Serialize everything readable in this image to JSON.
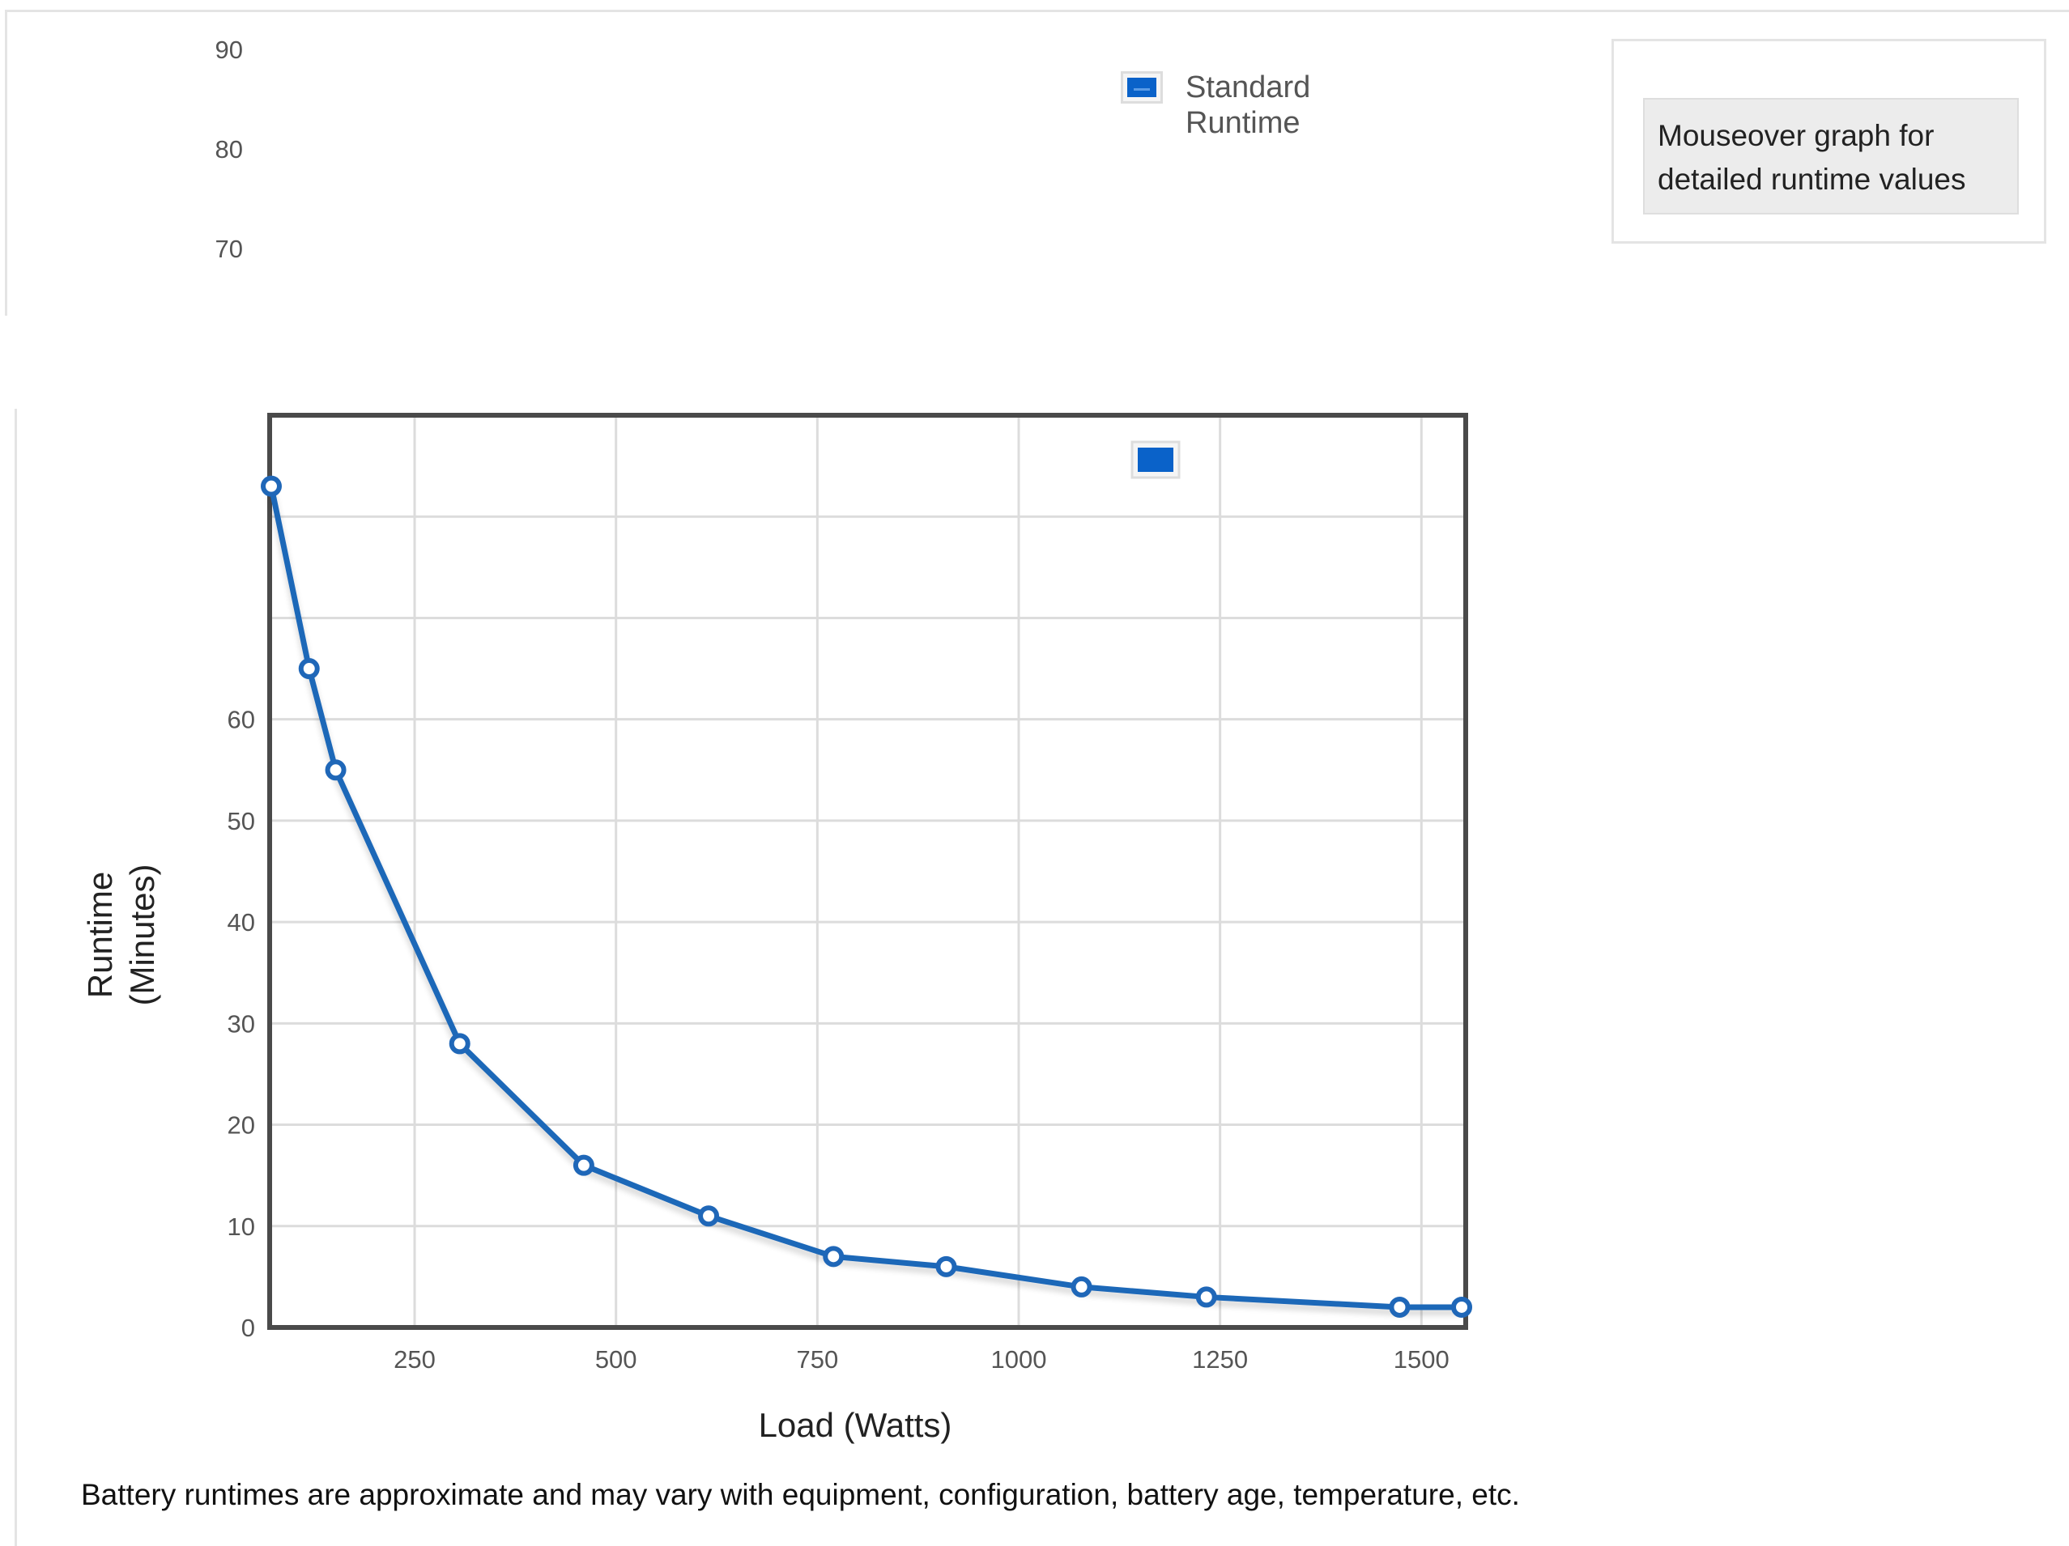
{
  "info_box": {
    "text": "Mouseover graph for detailed runtime values"
  },
  "top_partial_axis": {
    "ticks": [
      "90",
      "80",
      "70"
    ]
  },
  "legend": {
    "label": "Standard Runtime",
    "color": "#0a62c9"
  },
  "footnote": "Battery runtimes are approximate and may vary with equipment, configuration, battery age, temperature, etc.",
  "chart_data": {
    "type": "line",
    "xlabel": "Load (Watts)",
    "ylabel": "Runtime (Minutes)",
    "ylabel_lines": [
      "Runtime",
      "(Minutes)"
    ],
    "xlim": [
      70,
      1555
    ],
    "ylim": [
      0,
      90
    ],
    "x_ticks": [
      250,
      500,
      750,
      1000,
      1250,
      1500
    ],
    "y_ticks": [
      0,
      10,
      20,
      30,
      40,
      50,
      60
    ],
    "grid": true,
    "legend": "top-center",
    "series": [
      {
        "name": "Standard Runtime",
        "color": "#1f67b8",
        "x": [
          72,
          119,
          152,
          306,
          460,
          615,
          770,
          910,
          1078,
          1233,
          1473,
          1550
        ],
        "y": [
          83,
          65,
          55,
          28,
          16,
          11,
          7,
          6,
          4,
          3,
          2,
          2
        ]
      }
    ]
  }
}
